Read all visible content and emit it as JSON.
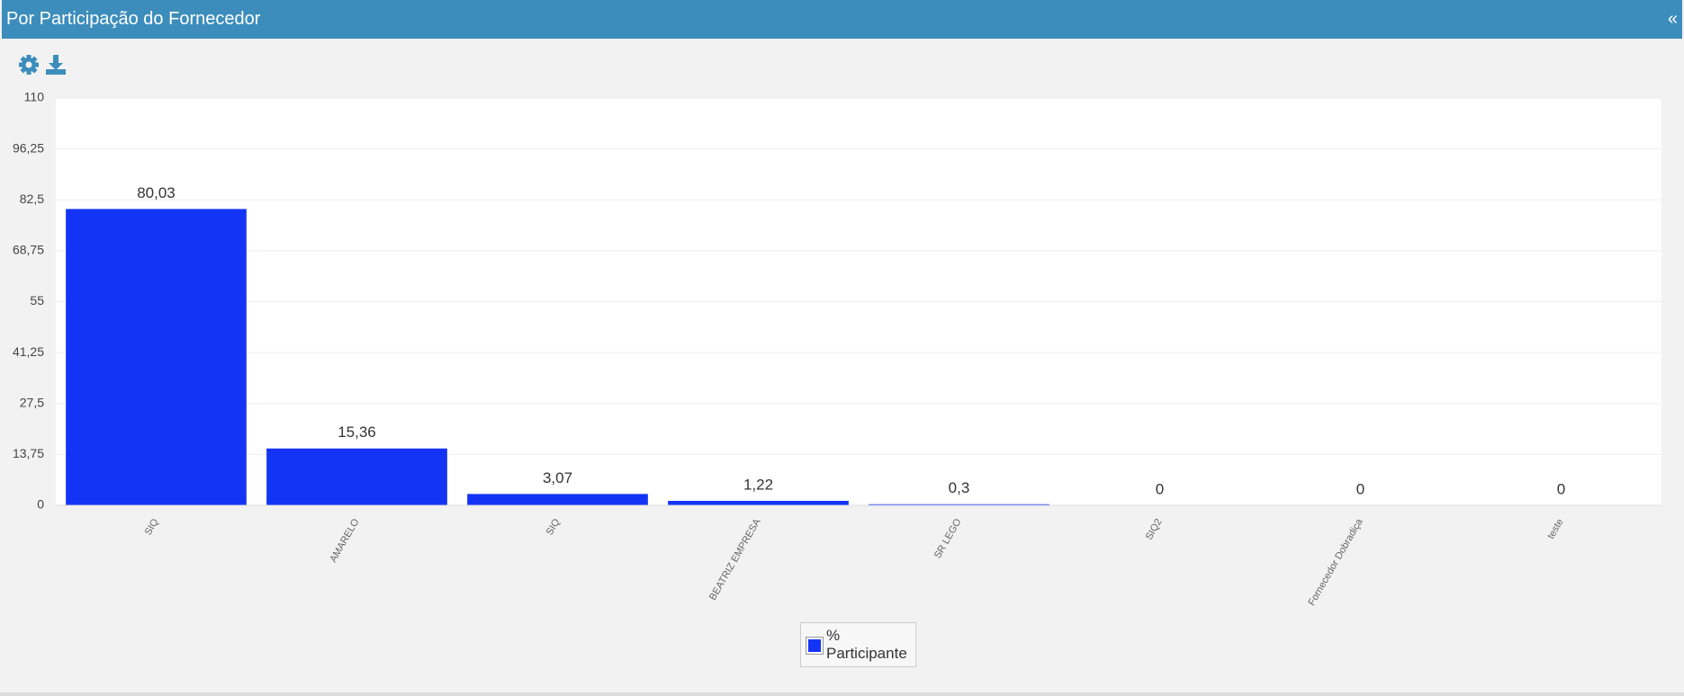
{
  "header": {
    "title": "Por Participação do Fornecedor",
    "collapse": "«"
  },
  "chart_data": {
    "type": "bar",
    "categories": [
      "SIQ",
      "AMARELO",
      "SIQ",
      "BEATRIZ EMPRESA",
      "SR LEGO",
      "SIQ2",
      "Fornecedor Dobradiça",
      "teste"
    ],
    "series": [
      {
        "name": "% Participante",
        "color": "#1434f5",
        "values": [
          80.03,
          15.36,
          3.07,
          1.22,
          0.3,
          0,
          0,
          0
        ],
        "value_labels": [
          "80,03",
          "15,36",
          "3,07",
          "1,22",
          "0,3",
          "0",
          "0",
          "0"
        ]
      }
    ],
    "ylim": [
      0,
      110
    ],
    "yticks": [
      0,
      {
        "value": 13.75,
        "label": "13,75"
      },
      {
        "value": 27.5,
        "label": "27,5"
      },
      {
        "value": 41.25,
        "label": "41,25"
      },
      55,
      {
        "value": 68.75,
        "label": "68,75"
      },
      {
        "value": 82.5,
        "label": "82,5"
      },
      {
        "value": 96.25,
        "label": "96,25"
      },
      110
    ],
    "grid": true,
    "legend": "bottom"
  }
}
